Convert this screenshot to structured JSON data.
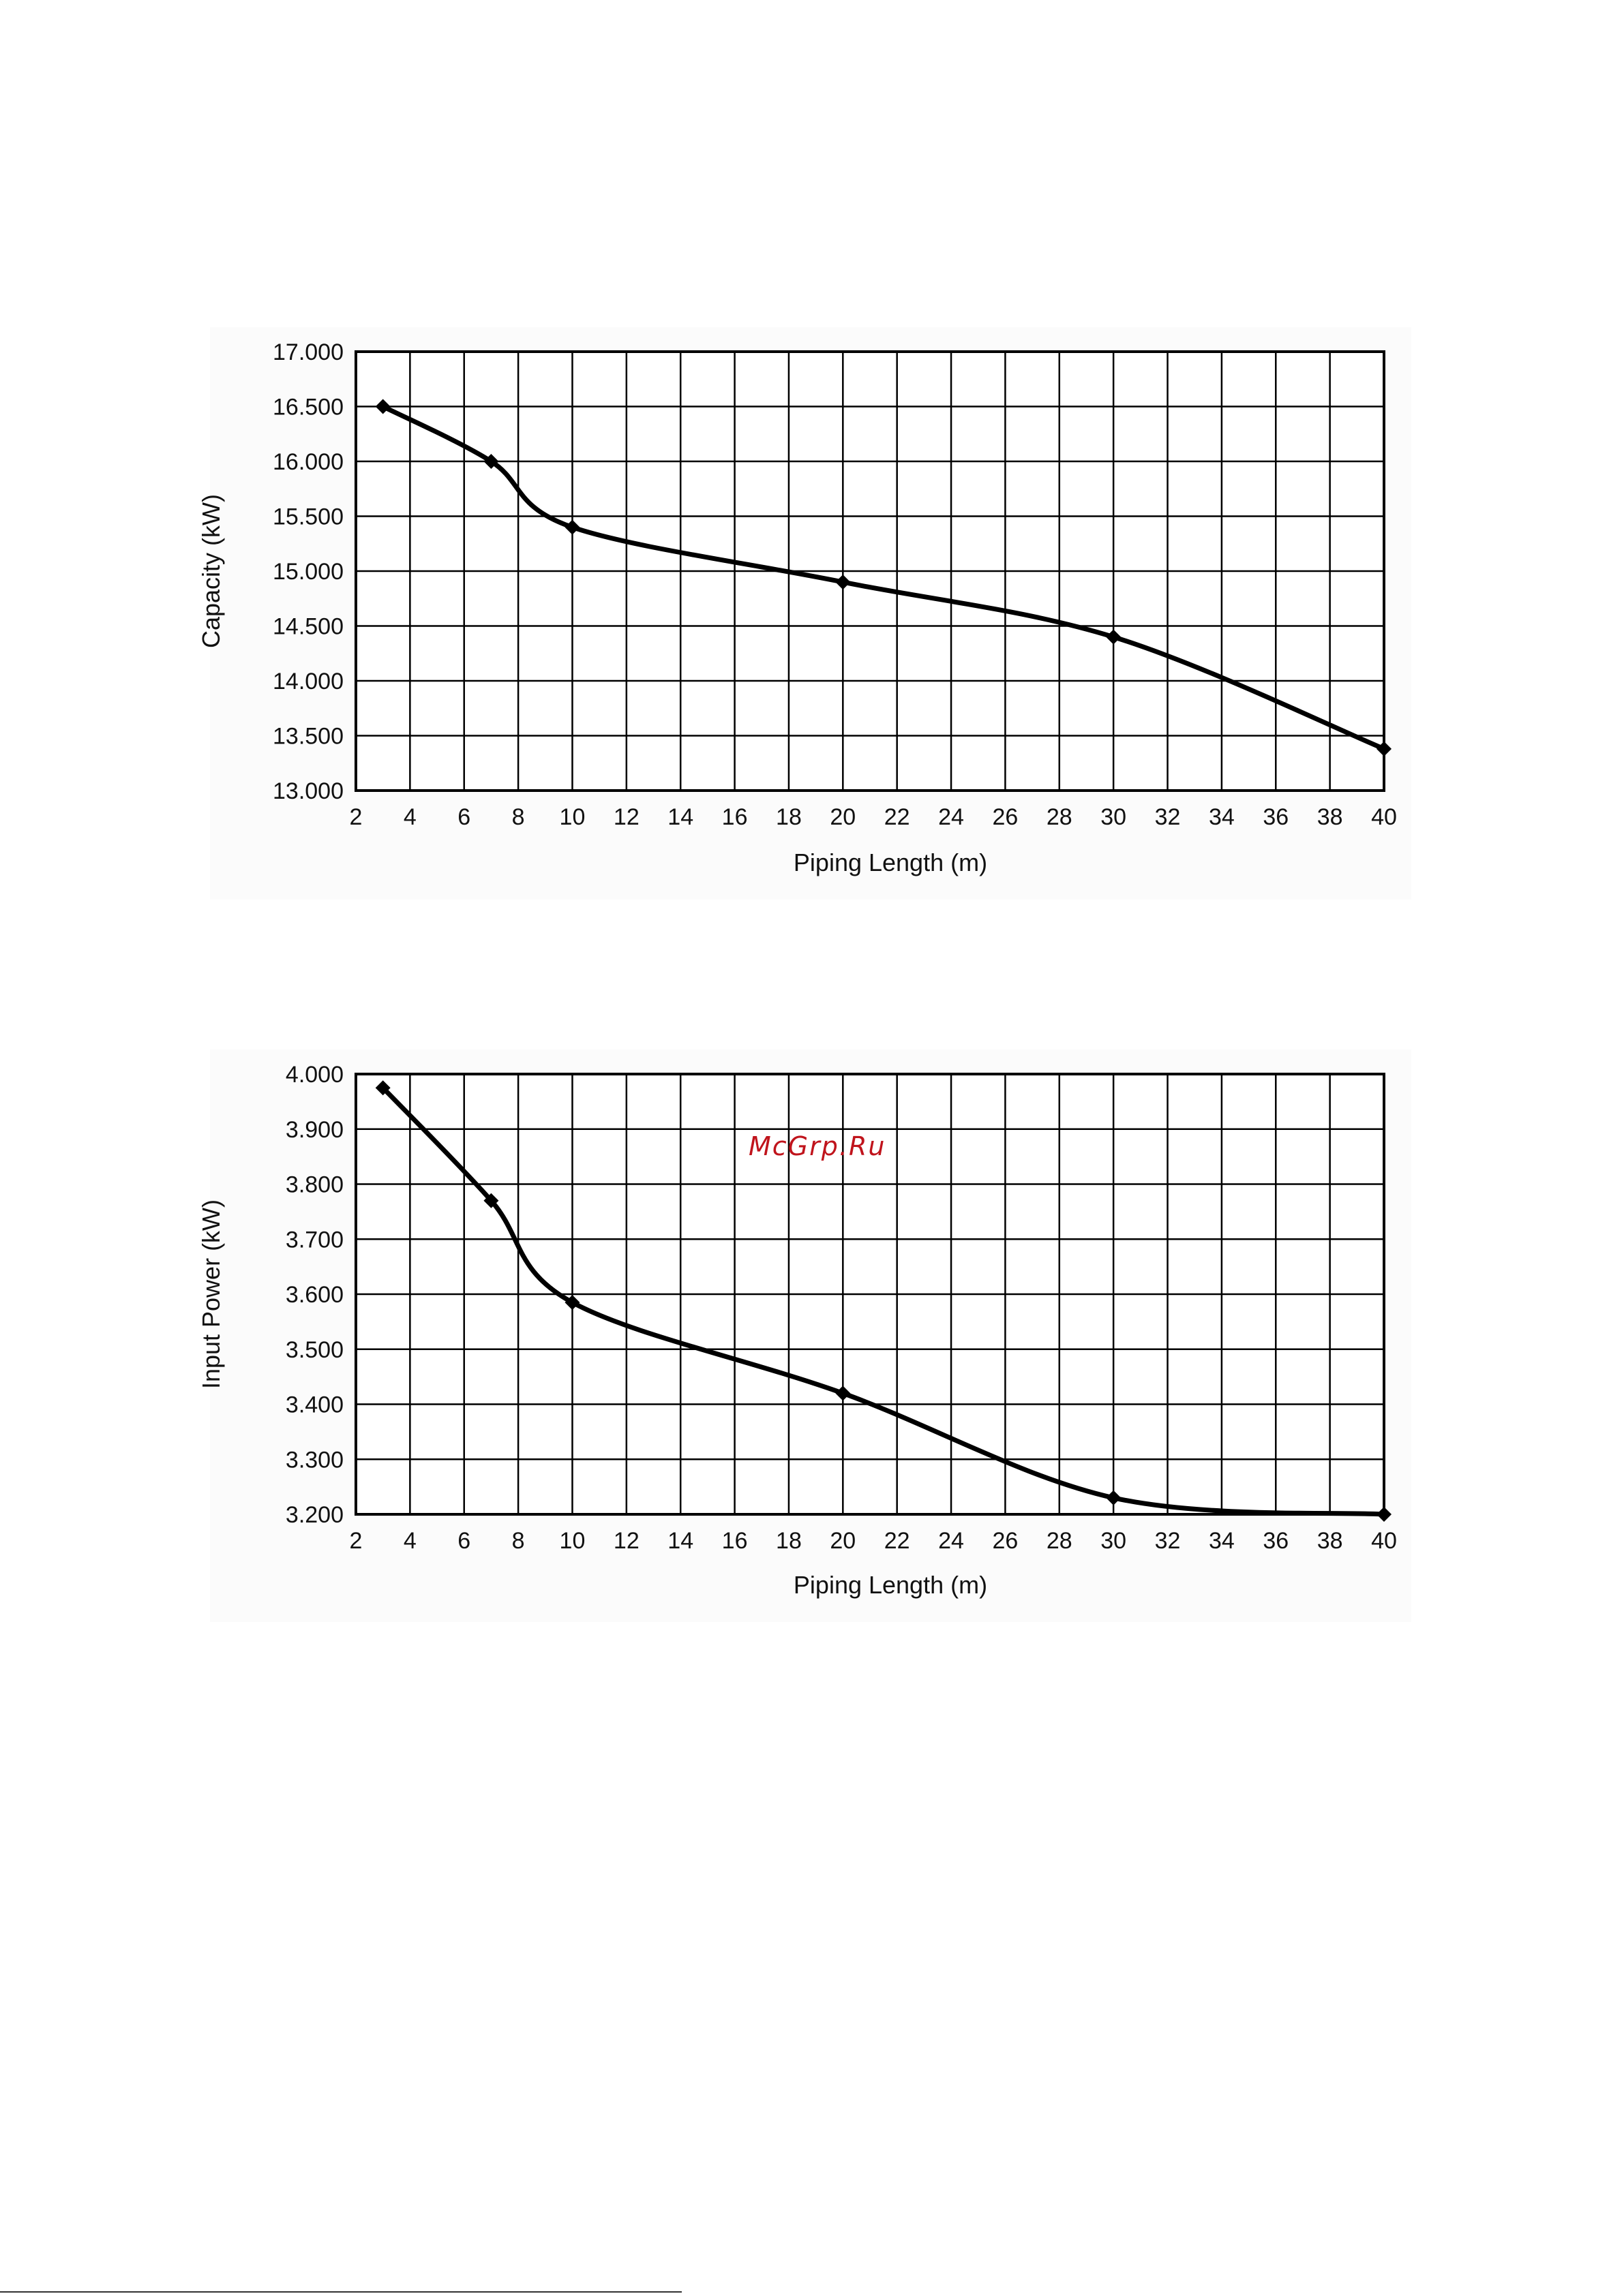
{
  "watermark": {
    "text": "McGrp.Ru",
    "color": "#c0141c"
  },
  "colors": {
    "line": "#000000",
    "grid": "#000000",
    "panel_background": "#fbfbfb"
  },
  "chart_data": [
    {
      "type": "line",
      "xlabel": "Piping Length (m)",
      "ylabel": "Capacity (kW)",
      "xlim": [
        2,
        40
      ],
      "ylim": [
        13.0,
        17.0
      ],
      "grid": true,
      "marker": "diamond",
      "x_ticks": [
        2,
        4,
        6,
        8,
        10,
        12,
        14,
        16,
        18,
        20,
        22,
        24,
        26,
        28,
        30,
        32,
        34,
        36,
        38,
        40
      ],
      "x_tick_labels": [
        "2",
        "4",
        "6",
        "8",
        "10",
        "12",
        "14",
        "16",
        "18",
        "20",
        "22",
        "24",
        "26",
        "28",
        "30",
        "32",
        "34",
        "36",
        "38",
        "40"
      ],
      "y_ticks": [
        13.0,
        13.5,
        14.0,
        14.5,
        15.0,
        15.5,
        16.0,
        16.5,
        17.0
      ],
      "y_tick_labels": [
        "13.000",
        "13.500",
        "14.000",
        "14.500",
        "15.000",
        "15.500",
        "16.000",
        "16.500",
        "17.000"
      ],
      "series": [
        {
          "x": [
            3,
            7,
            10,
            20,
            30,
            40
          ],
          "y": [
            16.5,
            16.0,
            15.4,
            14.9,
            14.4,
            13.38
          ]
        }
      ]
    },
    {
      "type": "line",
      "xlabel": "Piping Length (m)",
      "ylabel": "Input Power (kW)",
      "xlim": [
        2,
        40
      ],
      "ylim": [
        3.2,
        4.0
      ],
      "grid": true,
      "marker": "diamond",
      "x_ticks": [
        2,
        4,
        6,
        8,
        10,
        12,
        14,
        16,
        18,
        20,
        22,
        24,
        26,
        28,
        30,
        32,
        34,
        36,
        38,
        40
      ],
      "x_tick_labels": [
        "2",
        "4",
        "6",
        "8",
        "10",
        "12",
        "14",
        "16",
        "18",
        "20",
        "22",
        "24",
        "26",
        "28",
        "30",
        "32",
        "34",
        "36",
        "38",
        "40"
      ],
      "y_ticks": [
        3.2,
        3.3,
        3.4,
        3.5,
        3.6,
        3.7,
        3.8,
        3.9,
        4.0
      ],
      "y_tick_labels": [
        "3.200",
        "3.300",
        "3.400",
        "3.500",
        "3.600",
        "3.700",
        "3.800",
        "3.900",
        "4.000"
      ],
      "series": [
        {
          "x": [
            3,
            7,
            10,
            20,
            30,
            40
          ],
          "y": [
            3.975,
            3.77,
            3.585,
            3.42,
            3.23,
            3.2
          ]
        }
      ]
    }
  ]
}
